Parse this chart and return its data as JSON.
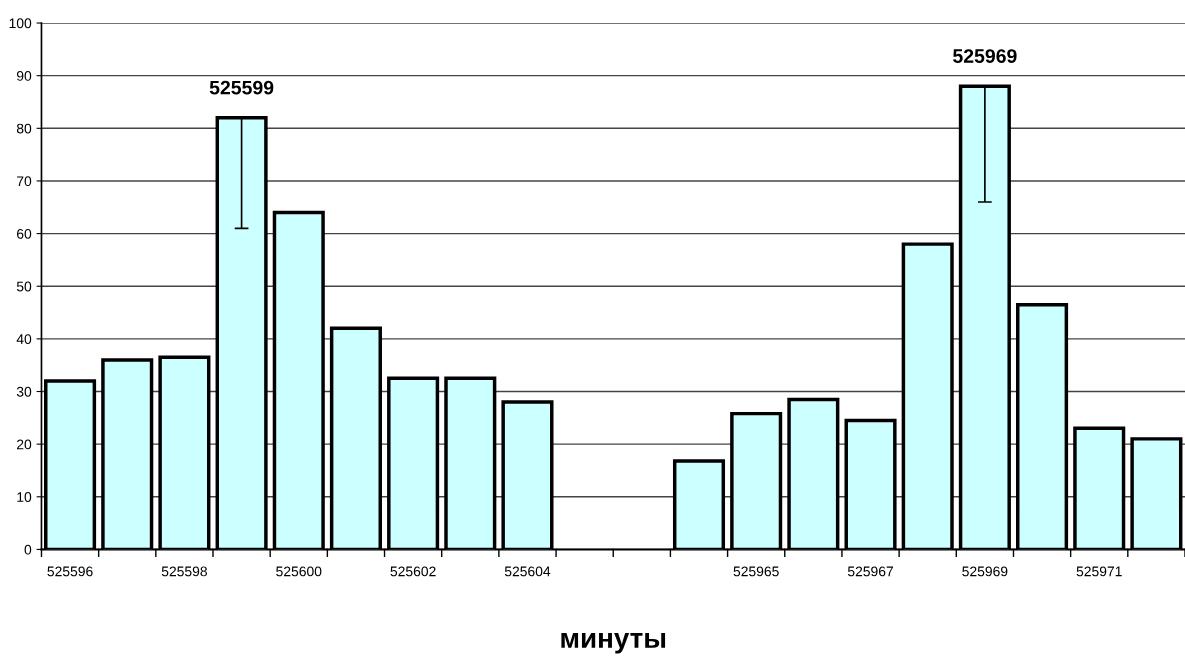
{
  "chart_data": {
    "type": "bar",
    "xlabel": "минуты",
    "categories": [
      "525596",
      null,
      "525598",
      null,
      "525600",
      null,
      "525602",
      null,
      "525604",
      null,
      null,
      null,
      "525965",
      null,
      "525967",
      null,
      "525969",
      null,
      "525971",
      null
    ],
    "values": [
      32,
      36,
      36.5,
      82,
      64,
      42,
      32.5,
      32.5,
      28,
      null,
      null,
      16.8,
      25.8,
      28.5,
      24.5,
      58,
      88,
      46.5,
      23,
      21
    ],
    "errors": [
      null,
      null,
      null,
      [
        61,
        82
      ],
      null,
      null,
      null,
      null,
      null,
      null,
      null,
      null,
      null,
      null,
      null,
      null,
      [
        66,
        88
      ],
      null,
      null,
      null
    ],
    "color": "#ccffff",
    "ylim": [
      0,
      100
    ],
    "yticks": [
      0,
      10,
      20,
      30,
      40,
      50,
      60,
      70,
      80,
      90,
      100
    ],
    "grid": "y",
    "annotations": [
      {
        "text": "525599",
        "y": 82
      },
      {
        "text": "525969",
        "y": 88
      }
    ]
  }
}
